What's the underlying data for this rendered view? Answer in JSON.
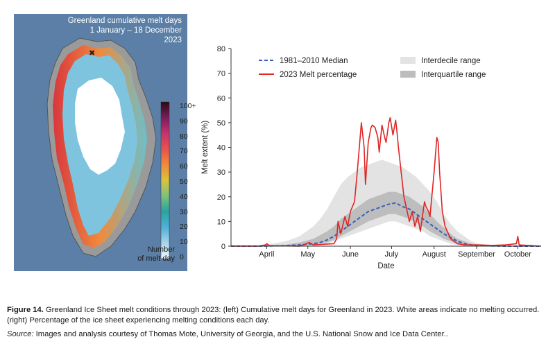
{
  "map": {
    "title_line1": "Greenland cumulative melt days",
    "title_line2": "1 January – 18 December",
    "title_line3": "2023",
    "colorbar_ticks": [
      "100+",
      "90",
      "80",
      "70",
      "60",
      "50",
      "40",
      "30",
      "20",
      "10",
      "0"
    ],
    "colorbar_caption_line1": "Number",
    "colorbar_caption_line2": "of melt day",
    "colors": {
      "ocean": "#5b7fa6",
      "land": "#9a9a9a",
      "no_melt": "#ffffff"
    }
  },
  "chart_data": {
    "type": "line",
    "xlabel": "Date",
    "ylabel": "Melt extent (%)",
    "ylim": [
      0,
      80
    ],
    "yticks": [
      0,
      10,
      20,
      30,
      40,
      50,
      60,
      70,
      80
    ],
    "xlim": [
      80,
      306
    ],
    "month_ticks": [
      {
        "label": "April",
        "day": 106
      },
      {
        "label": "May",
        "day": 136
      },
      {
        "label": "June",
        "day": 167
      },
      {
        "label": "July",
        "day": 197
      },
      {
        "label": "August",
        "day": 228
      },
      {
        "label": "September",
        "day": 259
      },
      {
        "label": "October",
        "day": 289
      }
    ],
    "legend": [
      {
        "label": "1981–2010 Median",
        "style": "dashed",
        "color": "#3a5dbd"
      },
      {
        "label": "2023 Melt percentage",
        "style": "solid",
        "color": "#e02424"
      },
      {
        "label": "Interdecile range",
        "style": "band",
        "color": "#e3e3e3"
      },
      {
        "label": "Interquartile range",
        "style": "band",
        "color": "#bdbdbd"
      }
    ],
    "x": [
      80,
      100,
      110,
      120,
      130,
      140,
      145,
      150,
      155,
      160,
      165,
      170,
      175,
      180,
      185,
      190,
      195,
      200,
      205,
      210,
      215,
      220,
      225,
      230,
      235,
      240,
      245,
      250,
      255,
      260,
      270,
      280,
      290,
      306
    ],
    "series": [
      {
        "name": "1981–2010 Median",
        "values": [
          0,
          0,
          0.1,
          0.2,
          0.5,
          1,
          1.5,
          2.5,
          4,
          6,
          8,
          10,
          12,
          14,
          15,
          16,
          17,
          17.5,
          16,
          15,
          13,
          11,
          9,
          7,
          5,
          3.5,
          2,
          1,
          0.5,
          0.3,
          0.1,
          0,
          0,
          0
        ]
      }
    ],
    "interdecile": {
      "low": [
        0,
        0,
        0,
        0,
        0,
        0.2,
        0.5,
        1,
        2,
        3,
        4,
        5,
        6,
        7,
        8,
        9,
        10,
        10,
        9,
        8,
        7,
        6,
        4,
        3,
        2,
        1,
        0.5,
        0.2,
        0,
        0,
        0,
        0,
        0,
        0
      ],
      "high": [
        0.5,
        0.5,
        1,
        2,
        4,
        8,
        11,
        15,
        20,
        25,
        28,
        30,
        32,
        33,
        34,
        35,
        34,
        33,
        32,
        30,
        28,
        25,
        22,
        18,
        13,
        9,
        6,
        4,
        2,
        1,
        0.5,
        0.3,
        0.2,
        0
      ]
    },
    "interquartile": {
      "low": [
        0,
        0,
        0,
        0,
        0.1,
        0.5,
        1,
        1.5,
        2.5,
        4,
        5.5,
        7,
        8.5,
        10,
        11,
        12,
        13,
        13,
        12,
        11,
        9.5,
        8,
        6,
        4.5,
        3,
        2,
        1,
        0.5,
        0.2,
        0,
        0,
        0,
        0,
        0
      ],
      "high": [
        0.2,
        0.2,
        0.3,
        0.6,
        1.5,
        3,
        4.5,
        6,
        8,
        11,
        13,
        15,
        17,
        19,
        20,
        21,
        22,
        22,
        21,
        20,
        18,
        16,
        13,
        10,
        7.5,
        5,
        3,
        2,
        1,
        0.5,
        0.2,
        0.1,
        0,
        0
      ]
    },
    "melt_2023": {
      "x": [
        80,
        100,
        105,
        106,
        108,
        130,
        135,
        137,
        140,
        155,
        157,
        158,
        160,
        163,
        165,
        167,
        170,
        172,
        175,
        177,
        178,
        180,
        182,
        183,
        185,
        187,
        188,
        190,
        192,
        193,
        195,
        196,
        198,
        200,
        201,
        202,
        204,
        206,
        208,
        210,
        212,
        214,
        216,
        218,
        220,
        221,
        222,
        224,
        225,
        226,
        228,
        230,
        231,
        232,
        234,
        236,
        240,
        245,
        250,
        260,
        270,
        280,
        288,
        289,
        290,
        306
      ],
      "y": [
        0,
        0,
        0.5,
        1,
        0.2,
        0,
        1,
        1.5,
        0.5,
        1,
        3,
        10,
        5,
        12,
        8,
        14,
        18,
        30,
        50,
        40,
        25,
        42,
        48,
        49,
        48,
        44,
        38,
        49,
        44,
        42,
        50,
        52,
        45,
        51,
        46,
        40,
        30,
        20,
        15,
        10,
        14,
        8,
        12,
        6,
        14,
        18,
        16,
        14,
        12,
        18,
        30,
        44,
        42,
        30,
        14,
        8,
        3,
        1,
        0.5,
        0.5,
        0.3,
        0.5,
        1,
        4,
        0.5,
        0
      ]
    }
  },
  "caption": {
    "figure_label": "Figure 14.",
    "text": " Greenland Ice Sheet melt conditions through 2023: (left) Cumulative melt days for Greenland in 2023. White areas indicate no melting occurred. (right) Percentage of the ice sheet experiencing melting conditions each day.",
    "source_label": "Source:",
    "source_text": " Images and analysis courtesy of Thomas Mote, University of Georgia, and the U.S. National Snow and Ice Data Center.."
  }
}
